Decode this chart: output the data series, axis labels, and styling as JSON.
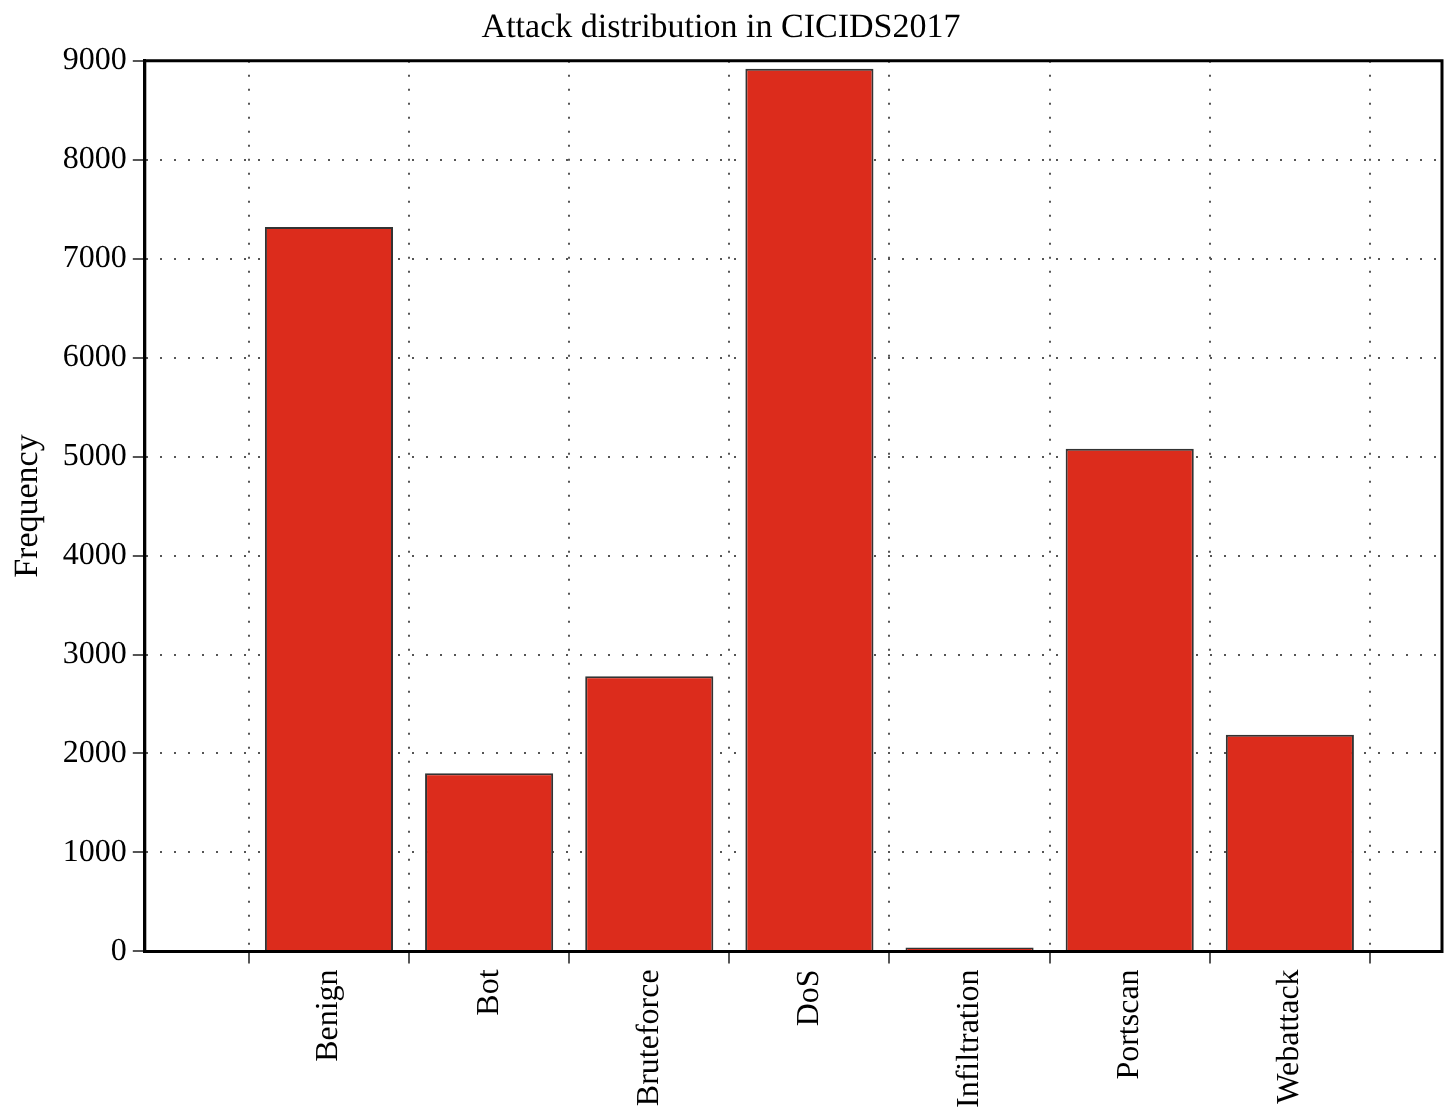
{
  "chart_data": {
    "type": "bar",
    "title": "Attack distribution in CICIDS2017",
    "ylabel": "Frequency",
    "categories": [
      "Benign",
      "Bot",
      "Bruteforce",
      "DoS",
      "Infiltration",
      "Portscan",
      "Webattack"
    ],
    "values": [
      7320,
      1800,
      2780,
      8920,
      40,
      5080,
      2190
    ],
    "color": "#dc2c1c",
    "ylim": [
      0,
      9000
    ],
    "yticks": [
      0,
      1000,
      2000,
      3000,
      4000,
      5000,
      6000,
      7000,
      8000,
      9000
    ],
    "grid": true,
    "legend": false
  }
}
